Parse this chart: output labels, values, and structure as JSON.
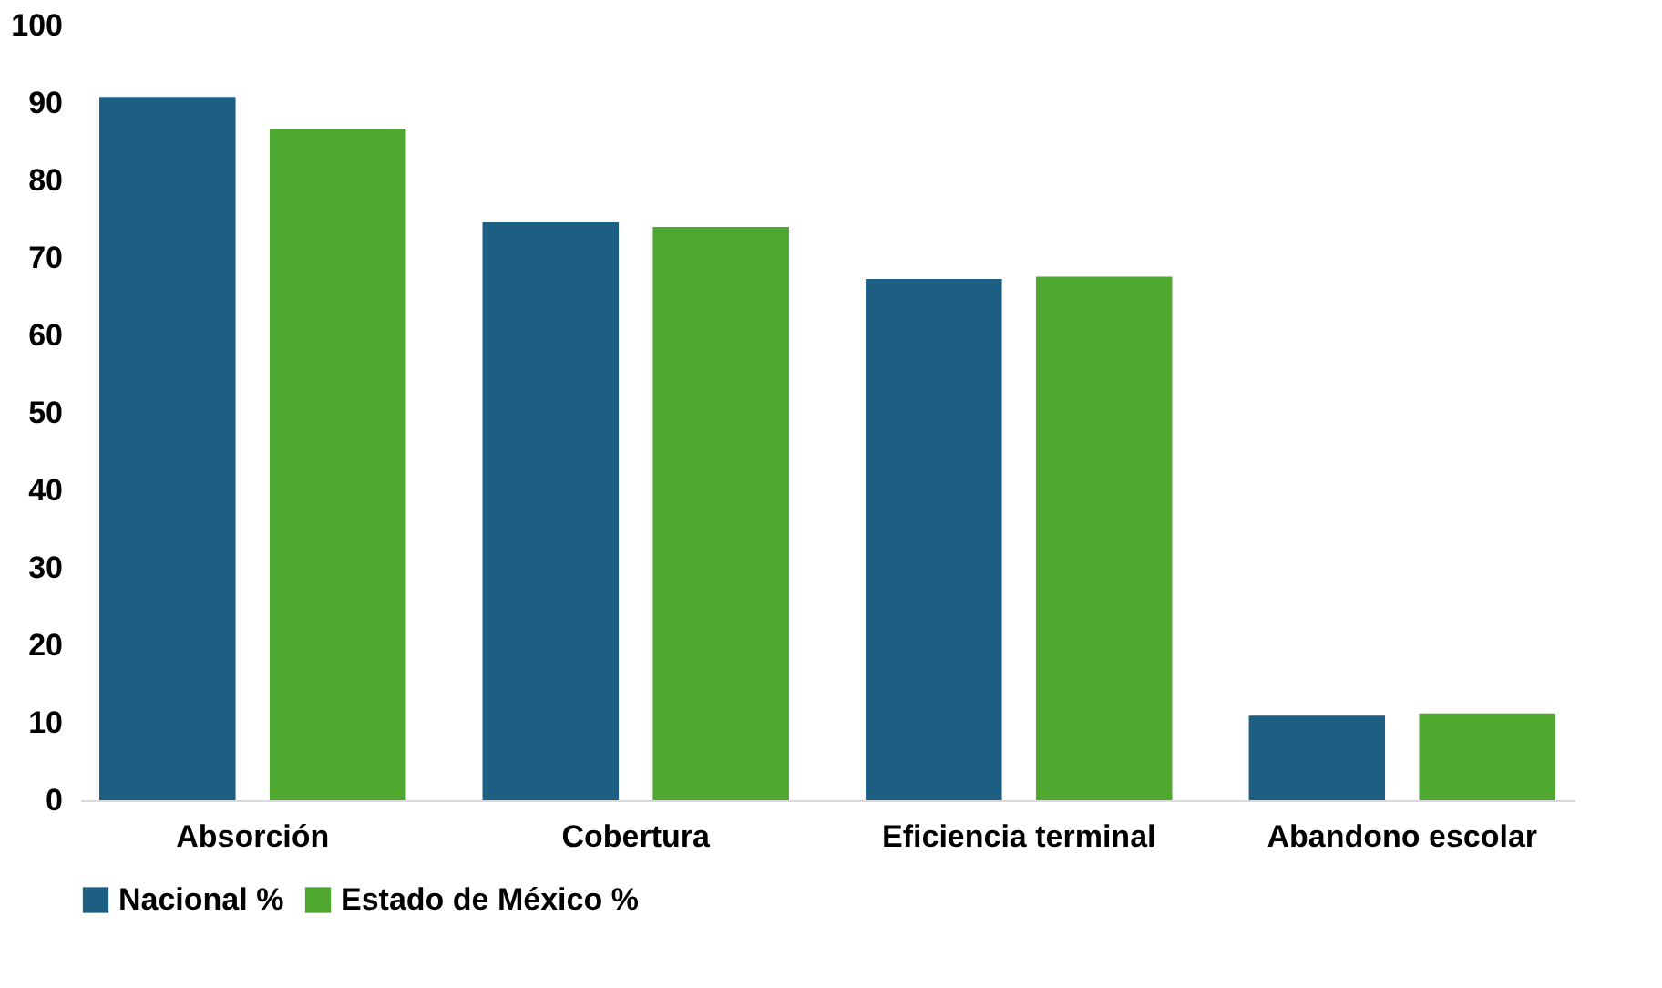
{
  "chart_data": {
    "type": "bar",
    "categories": [
      "Absorción",
      "Cobertura",
      "Eficiencia terminal",
      "Abandono escolar"
    ],
    "series": [
      {
        "name": "Nacional %",
        "color": "#1c5f82",
        "values": [
          90.8,
          74.6,
          67.3,
          10.9
        ]
      },
      {
        "name": "Estado de México %",
        "color": "#4ea72e",
        "values": [
          86.7,
          74.0,
          67.6,
          11.2
        ]
      }
    ],
    "ylim": [
      0,
      100
    ],
    "yticks": [
      0,
      10,
      20,
      30,
      40,
      50,
      60,
      70,
      80,
      90,
      100
    ],
    "grid": false,
    "legend": "bottom"
  }
}
